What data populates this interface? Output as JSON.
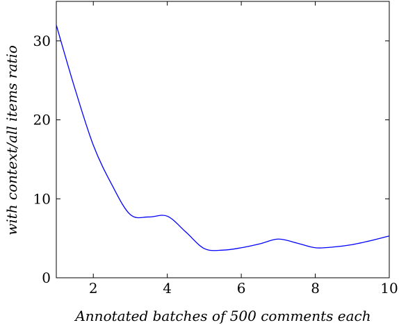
{
  "chart_data": {
    "type": "line",
    "xlabel": "Annotated batches of 500 comments each",
    "ylabel": "with context/all items ratio",
    "xlim": [
      1,
      10
    ],
    "ylim": [
      0,
      35
    ],
    "x_ticks": [
      2,
      4,
      6,
      8,
      10
    ],
    "y_ticks": [
      0,
      10,
      20,
      30
    ],
    "x_tick_labels": [
      "2",
      "4",
      "6",
      "8",
      "10"
    ],
    "y_tick_labels": [
      "0",
      "10",
      "20",
      "30"
    ],
    "grid": false,
    "legend": "none",
    "series": [
      {
        "color": "#0000ff",
        "x": [
          1,
          1.5,
          2,
          2.5,
          3,
          3.5,
          4,
          4.5,
          5,
          5.5,
          6,
          6.5,
          7,
          7.5,
          8,
          8.5,
          9,
          9.5,
          10
        ],
        "y": [
          32.0,
          24.0,
          16.8,
          11.8,
          8.0,
          7.7,
          7.8,
          5.8,
          3.7,
          3.5,
          3.8,
          4.3,
          4.9,
          4.4,
          3.8,
          3.9,
          4.2,
          4.7,
          5.3
        ]
      }
    ]
  }
}
